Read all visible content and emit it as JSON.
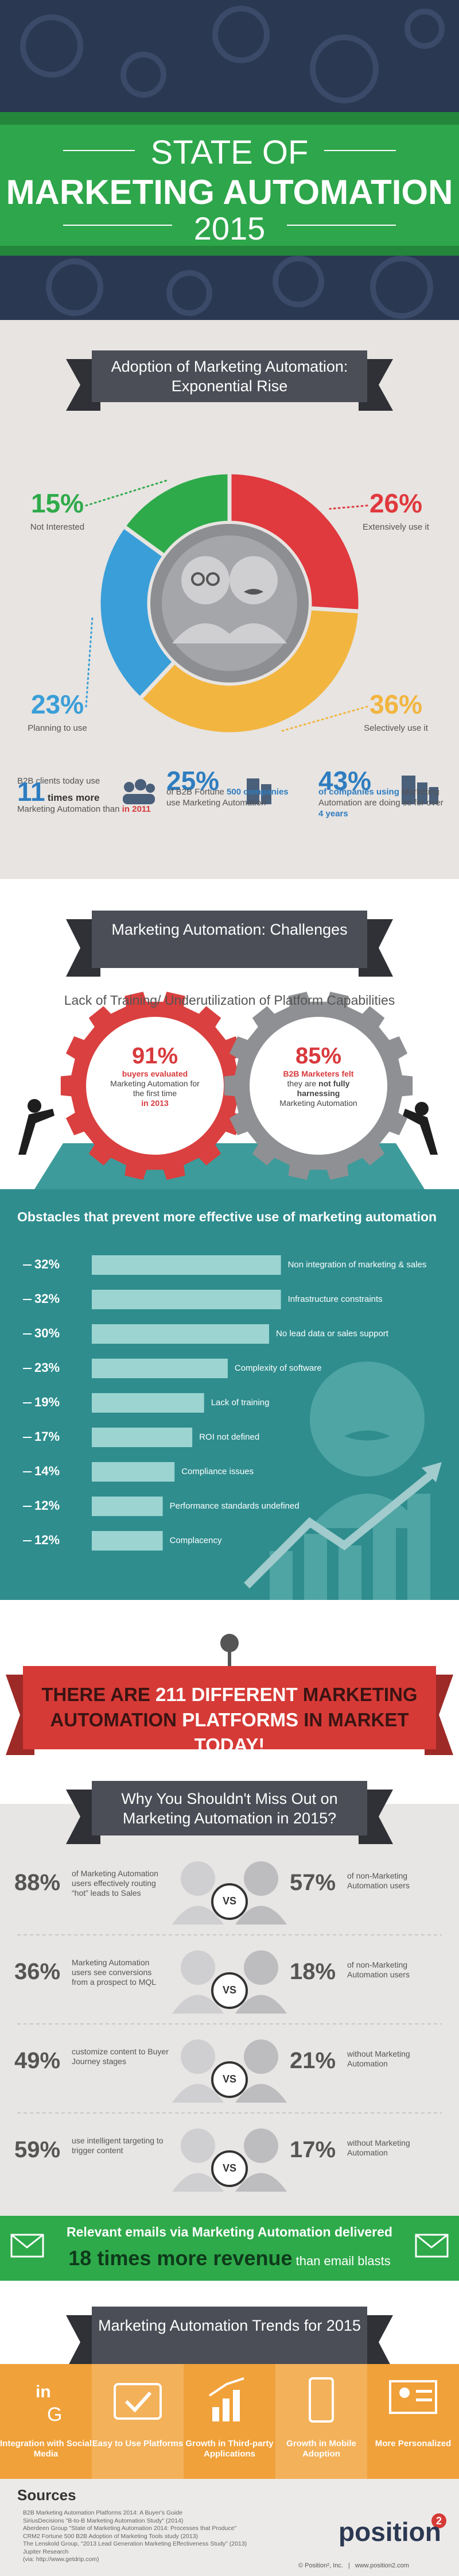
{
  "header": {
    "line1": "STATE OF",
    "line2": "MARKETING AUTOMATION",
    "line3": "2015"
  },
  "chart_data": [
    {
      "type": "pie",
      "title": "Adoption of Marketing Automation: Exponential Rise",
      "categories": [
        "Extensively use it",
        "Selectively use it",
        "Planning to use",
        "Not Interested"
      ],
      "values": [
        26,
        36,
        23,
        15
      ],
      "value_labels": [
        "26%",
        "36%",
        "23%",
        "15%"
      ],
      "colors": [
        "#e0393e",
        "#f2b53f",
        "#3a9ed8",
        "#2eaa4a"
      ]
    },
    {
      "type": "bar",
      "title": "Obstacles that prevent more effective use of marketing automation",
      "categories": [
        "Non integration of marketing & sales",
        "Infrastructure constraints",
        "No lead data or sales support",
        "Complexity of software",
        "Lack of training",
        "ROI not defined",
        "Compliance issues",
        "Performance standards undefined",
        "Complacency"
      ],
      "values": [
        32,
        32,
        30,
        23,
        19,
        17,
        14,
        12,
        12
      ],
      "value_labels": [
        "32%",
        "32%",
        "30%",
        "23%",
        "19%",
        "17%",
        "14%",
        "12%",
        "12%"
      ],
      "color": "#a9dbd8"
    }
  ],
  "adoption_stats": [
    {
      "intro": "B2B clients today use",
      "number": "11",
      "emph": "times more",
      "text": "Marketing Automation than",
      "highlight": "in 2011"
    },
    {
      "number": "25%",
      "text": "of B2B Fortune",
      "emph": "500 companies",
      "text2": "use Marketing Automation"
    },
    {
      "number": "43%",
      "emph": "of companies using",
      "text": "Marketing Automation are doing so for over",
      "highlight": "4 years"
    }
  ],
  "challenges": {
    "title": "Marketing Automation: Challenges",
    "subtitle": "Lack of Training/ Underutilization of Platform Capabilities",
    "gear1": {
      "value": "91%",
      "emph": "buyers evaluated",
      "text": "Marketing Automation for the first time",
      "highlight": "in 2013"
    },
    "gear2": {
      "value": "85%",
      "emph": "B2B Marketers felt",
      "text": "they are",
      "highlight": "not fully harnessing",
      "text2": "Marketing Automation"
    }
  },
  "platforms_banner": {
    "part1": "THERE ARE",
    "part2": "211 DIFFERENT",
    "part3": "MARKETING AUTOMATION",
    "part4": "PLATFORMS",
    "part5": "IN MARKET",
    "part6": "TODAY!"
  },
  "comparison": {
    "title": "Why You Shouldn't Miss Out on Marketing Automation in 2015?",
    "vs": "VS",
    "rows": [
      {
        "left_value": "88%",
        "left_text": "of Marketing Automation users effectively routing “hot” leads to Sales",
        "right_value": "57%",
        "right_text": "of non-Marketing Automation users"
      },
      {
        "left_value": "36%",
        "left_text": "Marketing Automation users see conversions from a prospect to MQL",
        "right_value": "18%",
        "right_text": "of non-Marketing Automation users"
      },
      {
        "left_value": "49%",
        "left_text": "customize content to Buyer Journey stages",
        "right_value": "21%",
        "right_text": "without Marketing Automation"
      },
      {
        "left_value": "59%",
        "left_text": "use intelligent targeting to trigger content",
        "right_value": "17%",
        "right_text": "without Marketing Automation"
      }
    ]
  },
  "email_band": {
    "line1": "Relevant emails via Marketing Automation delivered",
    "emph": "18 times more revenue",
    "text": "than email blasts"
  },
  "trends": {
    "title": "Marketing Automation Trends for 2015",
    "items": [
      "Integration with Social Media",
      "Easy to Use Platforms",
      "Growth in Third-party Applications",
      "Growth in Mobile Adoption",
      "More Personalized"
    ]
  },
  "sources": {
    "title": "Sources",
    "items": [
      "B2B Marketing Automation Platforms 2014: A Buyer's Guide",
      "SiriusDecisions \"B-to-B Marketing Automation Study\" (2014)",
      "Aberdeen Group \"State of Marketing Automation 2014: Processes that Produce\"",
      "CRM2 Fortune 500 B2B Adoption of Marketing Tools study (2013)",
      "The Lenskold Group, \"2013 Lead Generation Marketing Effectiveness Study\" (2013)",
      "Jupiter Research",
      "(via: http://www.getdrip.com)"
    ]
  },
  "footer": {
    "logo": "position",
    "logo_mark": "2",
    "copyright": "© Position², Inc.",
    "separator": "|",
    "url": "www.position2.com"
  }
}
